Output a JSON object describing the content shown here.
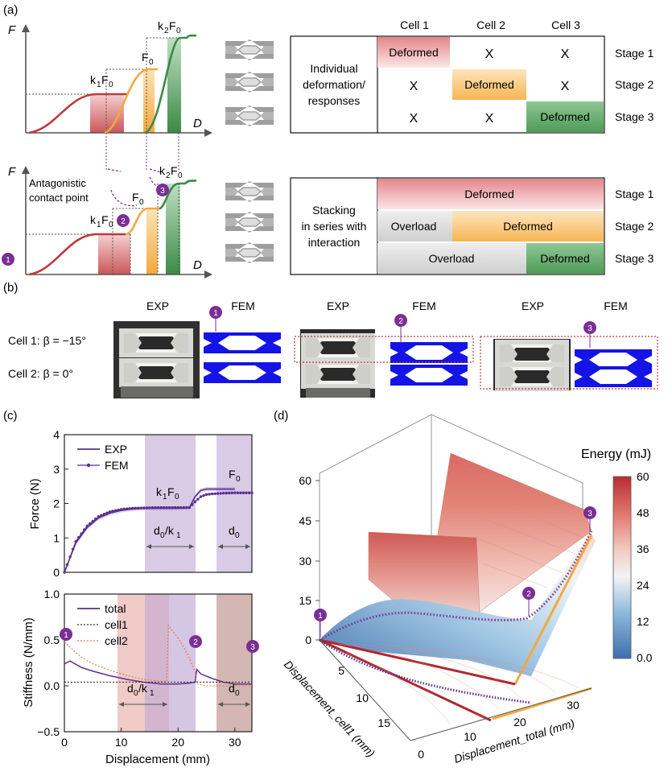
{
  "panel_labels": {
    "a": "(a)",
    "b": "(b)",
    "c": "(c)",
    "d": "(d)"
  },
  "panel_a": {
    "axis_f": "F",
    "axis_d": "D",
    "curve_labels_top": {
      "k1F0": "k1F0",
      "F0": "F0",
      "k2F0": "k2F0"
    },
    "antagonistic_label": [
      "Antagonistic",
      "contact point"
    ],
    "markers": [
      "1",
      "2",
      "3"
    ],
    "table_top": {
      "columns": [
        "Cell 1",
        "Cell 2",
        "Cell 3"
      ],
      "row_header": [
        "Individual",
        "deformation/",
        "responses"
      ],
      "stages": [
        "Stage 1",
        "Stage 2",
        "Stage 3"
      ],
      "deformed": "Deformed",
      "cross": "X"
    },
    "table_bottom": {
      "row_header": [
        "Stacking",
        "in series with",
        "interaction"
      ],
      "stages": [
        "Stage 1",
        "Stage 2",
        "Stage 3"
      ],
      "deformed": "Deformed",
      "overload": "Overload"
    },
    "colors": {
      "red": "#c0393b",
      "orange": "#f3a93a",
      "green": "#3b8a45",
      "purple": "#7a2f93"
    }
  },
  "panel_b": {
    "exp": "EXP",
    "fem": "FEM",
    "cell1_label": "Cell 1: β = −15°",
    "cell2_label": "Cell 2: β = 0°",
    "markers": [
      "1",
      "2",
      "3"
    ],
    "fem_color": "#1414e6"
  },
  "chart_data": [
    {
      "type": "line",
      "ylabel": "Force (N)",
      "xlim": [
        0,
        33
      ],
      "ylim": [
        0,
        4
      ],
      "yticks": [
        "0",
        "1",
        "2",
        "3",
        "4"
      ],
      "series": [
        {
          "name": "EXP",
          "x": [
            0,
            2,
            4,
            6,
            8,
            10,
            12,
            14,
            16,
            18,
            20,
            22,
            23,
            24,
            25,
            26,
            27,
            28,
            29,
            30
          ],
          "values": [
            0,
            0.85,
            1.3,
            1.58,
            1.72,
            1.8,
            1.84,
            1.86,
            1.86,
            1.86,
            1.86,
            1.88,
            2.2,
            2.38,
            2.42,
            2.42,
            2.42,
            2.42,
            2.42,
            2.42
          ]
        },
        {
          "name": "FEM",
          "x": [
            0,
            2,
            4,
            6,
            8,
            10,
            12,
            14,
            16,
            18,
            20,
            22,
            23,
            24,
            25,
            26,
            28,
            30,
            32,
            33
          ],
          "values": [
            0,
            0.9,
            1.35,
            1.62,
            1.76,
            1.83,
            1.86,
            1.87,
            1.88,
            1.88,
            1.88,
            1.88,
            2.05,
            2.2,
            2.26,
            2.28,
            2.3,
            2.31,
            2.31,
            2.31
          ]
        }
      ],
      "annotations": [
        "k1F0",
        "F0",
        "d0/k1",
        "d0"
      ]
    },
    {
      "type": "line",
      "xlabel": "Displacement (mm)",
      "ylabel": "Stiffness (N/mm)",
      "xlim": [
        0,
        33
      ],
      "ylim": [
        -0.5,
        1.0
      ],
      "xticks": [
        "0",
        "10",
        "20",
        "30"
      ],
      "yticks": [
        "-0.5",
        "0.0",
        "0.5",
        "1.0"
      ],
      "series": [
        {
          "name": "total",
          "x": [
            0,
            1,
            3,
            5,
            8,
            11,
            14,
            17,
            20,
            22,
            23,
            23.3,
            24,
            26,
            28,
            30,
            33
          ],
          "values": [
            0.24,
            0.27,
            0.2,
            0.16,
            0.11,
            0.07,
            0.04,
            0.02,
            0.02,
            0.03,
            0.04,
            0.18,
            0.13,
            0.08,
            0.04,
            0.02,
            0.02
          ]
        },
        {
          "name": "cell1",
          "x": [
            0,
            33
          ],
          "values": [
            0.04,
            0.04
          ]
        },
        {
          "name": "cell2",
          "x": [
            0,
            1,
            3,
            5,
            8,
            11,
            14,
            17,
            18,
            18.3,
            19,
            20,
            21,
            22,
            23,
            23.3,
            25,
            28,
            33
          ],
          "values": [
            0.48,
            0.42,
            0.31,
            0.24,
            0.17,
            0.11,
            0.07,
            0.05,
            0.05,
            0.66,
            0.6,
            0.52,
            0.42,
            0.3,
            0.15,
            0.02,
            0.0,
            0.0,
            0.0
          ]
        }
      ],
      "annotations": [
        "d0/k1",
        "d0"
      ],
      "markers": [
        "1",
        "2",
        "3"
      ]
    },
    {
      "type": "area",
      "title": "Energy (mJ)",
      "xlabel": "Displacement_total (mm)",
      "ylabel": "Displacement_cell1 (mm)",
      "zticks": [
        "0",
        "15",
        "30",
        "45",
        "60"
      ],
      "yticks": [
        "0",
        "5",
        "10",
        "15"
      ],
      "xticks": [
        "20",
        "30"
      ],
      "xticks_front": [
        "0",
        "10"
      ],
      "colorbar_ticks": [
        "60",
        "48",
        "36",
        "24",
        "12",
        "0.0"
      ],
      "markers": [
        "1",
        "2",
        "3"
      ]
    }
  ]
}
